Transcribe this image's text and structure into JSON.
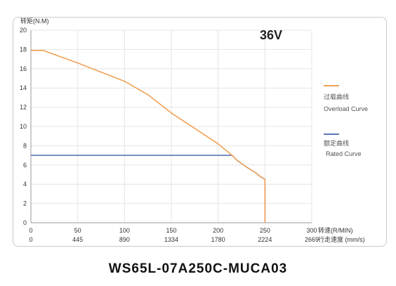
{
  "colors": {
    "overload": "#f0a257",
    "rated": "#5a77b8",
    "grid": "#e4e4e4",
    "axis": "#9a9a9a"
  },
  "voltage_label": "36V",
  "model_title": "WS65L-07A250C-MUCA03",
  "chart_data": {
    "type": "line",
    "ylabel": "转矩(N.M)",
    "xlabel": "转速(R/MIN)",
    "xlabel2": "行走速度 (mm/s)",
    "xlim": [
      0,
      300
    ],
    "ylim": [
      0,
      20
    ],
    "x_ticks": [
      "0",
      "50",
      "100",
      "150",
      "200",
      "250",
      "300"
    ],
    "x2_ticks": [
      "0",
      "445",
      "890",
      "1334",
      "1780",
      "2224",
      "2669"
    ],
    "y_ticks": [
      "0",
      "2",
      "4",
      "6",
      "8",
      "10",
      "12",
      "14",
      "16",
      "18",
      "20"
    ],
    "grid": true,
    "legend_position": "right",
    "series": [
      {
        "name": "过载曲线",
        "name_en": "Overload Curve",
        "x": [
          0,
          13,
          50,
          100,
          125,
          150,
          175,
          200,
          215,
          220,
          230,
          240,
          245,
          250,
          250
        ],
        "y": [
          17.9,
          17.9,
          16.6,
          14.7,
          13.3,
          11.4,
          9.8,
          8.2,
          7.0,
          6.5,
          5.8,
          5.2,
          4.8,
          4.5,
          0
        ]
      },
      {
        "name": "额定曲线",
        "name_en": "Rated Curve",
        "x": [
          0,
          215,
          220,
          230,
          240,
          245,
          250,
          250
        ],
        "y": [
          7.0,
          7.0,
          6.5,
          5.8,
          5.2,
          4.8,
          4.5,
          0
        ]
      }
    ]
  }
}
